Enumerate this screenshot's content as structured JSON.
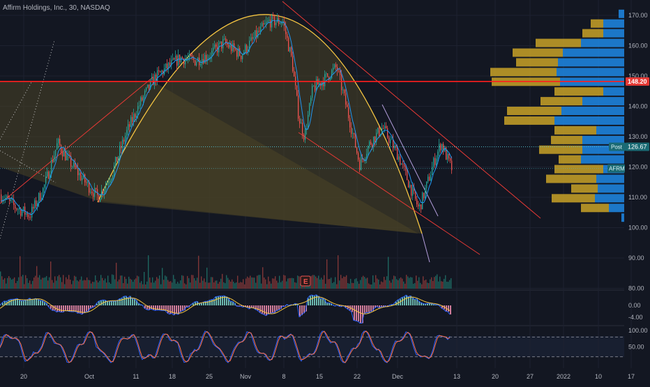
{
  "header": {
    "symbol_title": "Affirm Holdings, Inc., 30, NASDAQ"
  },
  "colors": {
    "background": "#131722",
    "up": "#26a69a",
    "down": "#ef5350",
    "ma_line": "#2196f3",
    "arc": "#f5c542",
    "arc_fill": "#4a4326",
    "channel": "#e53935",
    "resistance": "#ff1e1e",
    "vp_up": "#1e88e5",
    "vp_down": "#c9a227",
    "grid": "#1e2230",
    "axis_text": "#b2b5be"
  },
  "chart_data": [
    {
      "type": "candlestick",
      "pane": "price",
      "symbol": "Affirm Holdings, Inc.",
      "interval": "30",
      "exchange": "NASDAQ",
      "y_ticks": [
        "170.00",
        "160.00",
        "150.00",
        "140.00",
        "130.00",
        "120.00",
        "110.00",
        "100.00",
        "90.00",
        "80.00"
      ],
      "ylim": [
        80,
        175
      ],
      "x_labels": [
        "20",
        "Oct",
        "11",
        "18",
        "25",
        "Nov",
        "8",
        "15",
        "22",
        "Dec",
        "13",
        "20",
        "27",
        "2022",
        "10",
        "17"
      ],
      "price_path": [
        [
          0,
          111
        ],
        [
          20,
          107
        ],
        [
          42,
          104
        ],
        [
          62,
          113
        ],
        [
          82,
          128
        ],
        [
          98,
          122
        ],
        [
          118,
          116
        ],
        [
          140,
          110
        ],
        [
          160,
          118
        ],
        [
          180,
          131
        ],
        [
          200,
          141
        ],
        [
          220,
          149
        ],
        [
          240,
          153
        ],
        [
          258,
          156
        ],
        [
          278,
          155
        ],
        [
          300,
          157
        ],
        [
          320,
          161
        ],
        [
          345,
          157
        ],
        [
          365,
          163
        ],
        [
          385,
          168
        ],
        [
          405,
          168
        ],
        [
          418,
          155
        ],
        [
          428,
          136
        ],
        [
          436,
          130
        ],
        [
          448,
          146
        ],
        [
          465,
          149
        ],
        [
          482,
          153
        ],
        [
          498,
          138
        ],
        [
          515,
          121
        ],
        [
          530,
          128
        ],
        [
          548,
          133
        ],
        [
          570,
          124
        ],
        [
          585,
          115
        ],
        [
          600,
          106
        ],
        [
          610,
          113
        ],
        [
          622,
          122
        ],
        [
          632,
          128
        ],
        [
          642,
          122
        ],
        [
          648,
          119
        ]
      ],
      "current_price": "126.67",
      "current_label": "Post",
      "ticker_badge": "AFRM",
      "resistance_level": "148.20",
      "volume_profile": [
        {
          "price": 170.5,
          "up": 0,
          "down": 8
        },
        {
          "price": 167.3,
          "up": 18,
          "down": 30
        },
        {
          "price": 164.1,
          "up": 30,
          "down": 30
        },
        {
          "price": 160.9,
          "up": 65,
          "down": 62
        },
        {
          "price": 157.7,
          "up": 72,
          "down": 88
        },
        {
          "price": 154.5,
          "up": 60,
          "down": 95
        },
        {
          "price": 151.3,
          "up": 95,
          "down": 97
        },
        {
          "price": 148.1,
          "up": 98,
          "down": 92
        },
        {
          "price": 144.9,
          "up": 70,
          "down": 30
        },
        {
          "price": 141.7,
          "up": 60,
          "down": 60
        },
        {
          "price": 138.5,
          "up": 78,
          "down": 90
        },
        {
          "price": 135.3,
          "up": 72,
          "down": 100
        },
        {
          "price": 132.1,
          "up": 60,
          "down": 40
        },
        {
          "price": 128.9,
          "up": 45,
          "down": 60
        },
        {
          "price": 125.7,
          "up": 62,
          "down": 60
        },
        {
          "price": 122.5,
          "up": 32,
          "down": 62
        },
        {
          "price": 119.3,
          "up": 70,
          "down": 30
        },
        {
          "price": 116.1,
          "up": 72,
          "down": 40
        },
        {
          "price": 112.9,
          "up": 38,
          "down": 38
        },
        {
          "price": 109.7,
          "up": 62,
          "down": 42
        },
        {
          "price": 106.5,
          "up": 40,
          "down": 22
        },
        {
          "price": 103.3,
          "up": 0,
          "down": 4
        }
      ]
    },
    {
      "type": "bar",
      "pane": "oscillator",
      "y_ticks": [
        "0.00",
        "-4.00"
      ]
    },
    {
      "type": "line",
      "pane": "stochastic",
      "y_ticks": [
        "100.00",
        "50.00"
      ],
      "ylim": [
        0,
        100
      ],
      "levels": [
        80,
        20
      ]
    }
  ]
}
